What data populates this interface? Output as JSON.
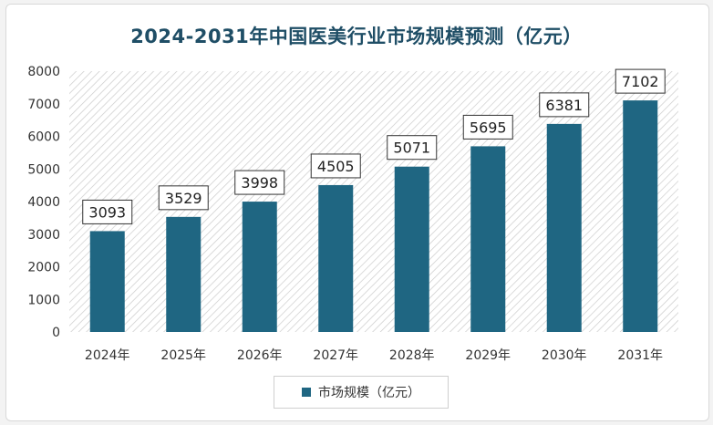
{
  "chart_data": {
    "type": "bar",
    "title": "2024-2031年中国医美行业市场规模预测（亿元）",
    "categories": [
      "2024年",
      "2025年",
      "2026年",
      "2027年",
      "2028年",
      "2029年",
      "2030年",
      "2031年"
    ],
    "series": [
      {
        "name": "市场规模（亿元）",
        "values": [
          3093,
          3529,
          3998,
          4505,
          5071,
          5695,
          6381,
          7102
        ]
      }
    ],
    "ylim": [
      0,
      8000
    ],
    "yticks": [
      0,
      1000,
      2000,
      3000,
      4000,
      5000,
      6000,
      7000,
      8000
    ],
    "xlabel": "",
    "ylabel": "",
    "grid": false,
    "legend_position": "bottom",
    "colors": {
      "bar": "#1f6682",
      "title": "#1f4e66",
      "hatch": "#cccccc"
    }
  }
}
